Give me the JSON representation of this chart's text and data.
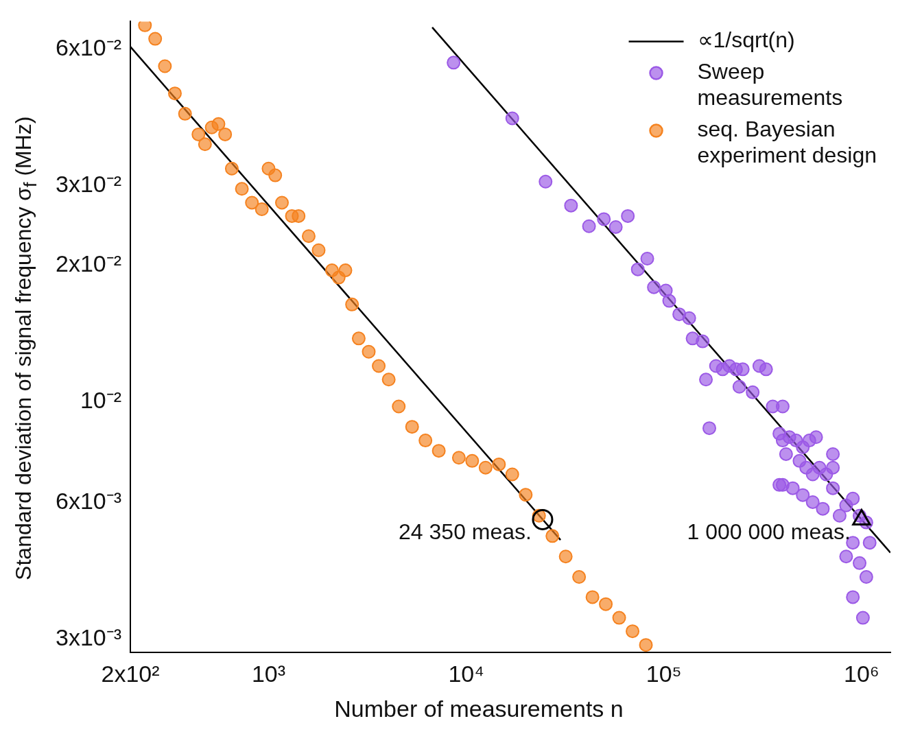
{
  "chart_data": {
    "type": "scatter",
    "xlabel": "Number of measurements n",
    "ylabel": "Standard deviation of signal frequency σ$_{f}$ (MHz)",
    "log": "xy",
    "grid": false,
    "legend": "top right",
    "marker": "circle",
    "xlim": [
      200,
      1400000
    ],
    "ylim": [
      0.0028,
      0.069
    ],
    "xticks": [
      {
        "value": 200,
        "label": "2x10²"
      },
      {
        "value": 1000,
        "label": "10³"
      },
      {
        "value": 10000,
        "label": "10⁴"
      },
      {
        "value": 100000,
        "label": "10⁵"
      },
      {
        "value": 1000000,
        "label": "10⁶"
      }
    ],
    "yticks": [
      {
        "value": 0.003,
        "label": "3x10⁻³"
      },
      {
        "value": 0.006,
        "label": "6x10⁻³"
      },
      {
        "value": 0.01,
        "label": "10⁻²"
      },
      {
        "value": 0.02,
        "label": "2x10⁻²"
      },
      {
        "value": 0.03,
        "label": "3x10⁻²"
      },
      {
        "value": 0.06,
        "label": "6x10⁻²"
      }
    ],
    "series": [
      {
        "name": "∝1/sqrt(n)",
        "type": "line",
        "marker": "none",
        "color": "#000000",
        "x": [
          200,
          30000
        ],
        "values": [
          0.0607,
          0.00496
        ]
      },
      {
        "type": "line",
        "marker": "none",
        "color": "#000000",
        "x": [
          6730,
          1400000
        ],
        "values": [
          0.067,
          0.00465
        ]
      },
      {
        "name": "Sweep measurements",
        "color": "#9b59e6",
        "x": [
          8630,
          17100,
          25200,
          33900,
          41800,
          49700,
          57100,
          65700,
          73800,
          82400,
          89000,
          102300,
          106400,
          119600,
          134300,
          139700,
          157000,
          163200,
          183500,
          198300,
          214400,
          231800,
          250600,
          241000,
          281300,
          304000,
          328700,
          355400,
          384000,
          399000,
          431500,
          466500,
          504300,
          544500,
          588800,
          415000,
          485300,
          524800,
          566200,
          612400,
          662200,
          716100,
          399000,
          448700,
          504300,
          566200,
          636800,
          716100,
          774500,
          835600,
          903600,
          977200,
          1057000,
          1099000,
          903600,
          835600,
          977200,
          1057000,
          903600,
          1016000,
          384000,
          169800,
          399000,
          716100
        ],
        "values": [
          0.056,
          0.0422,
          0.0306,
          0.0271,
          0.0244,
          0.0253,
          0.0243,
          0.0257,
          0.0196,
          0.0207,
          0.0179,
          0.0176,
          0.0167,
          0.0156,
          0.0153,
          0.0138,
          0.0136,
          0.0112,
          0.012,
          0.0118,
          0.012,
          0.0118,
          0.0118,
          0.0108,
          0.0105,
          0.012,
          0.0118,
          0.00977,
          0.00851,
          0.00822,
          0.00836,
          0.00822,
          0.00794,
          0.00822,
          0.00836,
          0.00767,
          0.00741,
          0.00716,
          0.00692,
          0.00716,
          0.00692,
          0.00716,
          0.00656,
          0.00645,
          0.00623,
          0.00601,
          0.00581,
          0.00645,
          0.00561,
          0.00591,
          0.00612,
          0.00561,
          0.00542,
          0.00489,
          0.00489,
          0.00456,
          0.00441,
          0.00411,
          0.00371,
          0.00334,
          0.00656,
          0.00875,
          0.00977,
          0.00767
        ]
      },
      {
        "name": "seq. Bayesian experiment design",
        "color": "#f5821f",
        "x": [
          237,
          267,
          299,
          336,
          378,
          442,
          477,
          516,
          558,
          603,
          652,
          733,
          824,
          925,
          1000,
          1081,
          1169,
          1313,
          1419,
          1596,
          1792,
          2094,
          2264,
          2448,
          2645,
          2859,
          3213,
          3609,
          4055,
          4557,
          5323,
          6220,
          7266,
          9180,
          10720,
          12530,
          14640,
          17100,
          20000,
          23350,
          27290,
          31870,
          37240,
          43520,
          50830,
          59400,
          69400,
          81100
        ],
        "values": [
          0.0677,
          0.0632,
          0.055,
          0.0479,
          0.0432,
          0.0389,
          0.037,
          0.0403,
          0.041,
          0.0389,
          0.0327,
          0.0295,
          0.0275,
          0.0266,
          0.0327,
          0.0316,
          0.0275,
          0.0257,
          0.0257,
          0.0232,
          0.0216,
          0.0195,
          0.0188,
          0.0195,
          0.0164,
          0.0138,
          0.0129,
          0.012,
          0.0112,
          0.00977,
          0.00881,
          0.00822,
          0.0078,
          0.00753,
          0.00741,
          0.00716,
          0.00728,
          0.00692,
          0.00624,
          0.00561,
          0.00506,
          0.00456,
          0.00411,
          0.00371,
          0.00358,
          0.00334,
          0.00312,
          0.00291
        ]
      },
      {
        "color": "#000000",
        "marker": "circle",
        "x": [
          24350
        ],
        "values": [
          0.0055
        ]
      },
      {
        "color": "#000000",
        "marker": "triangle",
        "x": [
          1000000
        ],
        "values": [
          0.0055
        ]
      }
    ],
    "annotations": [
      {
        "text": "24 350 meas.",
        "x": 24350,
        "y": 0.0055
      },
      {
        "text": "1 000 000 meas.",
        "x": 1000000,
        "y": 0.0055
      }
    ]
  }
}
